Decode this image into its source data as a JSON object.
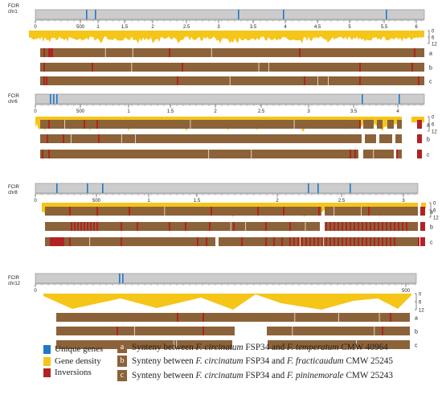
{
  "colors": {
    "unique_genes": "#1f78c8",
    "gene_density": "#f5c518",
    "inversions": "#b22222",
    "synteny": "#8c6239",
    "chromosome": "#cccccc"
  },
  "chromosomes": [
    {
      "label_line1": "FCIR",
      "label_line2": "chr1",
      "ticks": [
        "0",
        "500",
        "1",
        "1.5",
        "2",
        "2.5",
        "3",
        "3.5",
        "4",
        "4.5",
        "5",
        "5.5",
        "6"
      ],
      "axis_labels": [
        "0",
        "6",
        "12"
      ],
      "track_labels": [
        "a",
        "b",
        "c"
      ]
    },
    {
      "label_line1": "FCIR",
      "label_line2": "chr6",
      "ticks": [
        "0",
        "500",
        "1",
        "1.5",
        "2",
        "2.5",
        "3",
        "3.5",
        "4"
      ],
      "axis_labels": [
        "0",
        "6",
        "12"
      ],
      "track_labels": [
        "a",
        "b",
        "c"
      ]
    },
    {
      "label_line1": "FCIR",
      "label_line2": "chr8",
      "ticks": [
        "0",
        "500",
        "1",
        "1.5",
        "2",
        "2.5",
        "3"
      ],
      "axis_labels": [
        "0",
        "6",
        "12"
      ],
      "track_labels": [
        "a",
        "b",
        "c"
      ]
    },
    {
      "label_line1": "FCIR",
      "label_line2": "chr12",
      "ticks": [
        "0",
        "500"
      ],
      "axis_labels": [
        "0",
        "6",
        "12"
      ],
      "track_labels": [
        "a",
        "b",
        "c"
      ]
    }
  ],
  "legend": {
    "unique_genes": "Unique genes",
    "gene_density": "Gene density",
    "inversions": "Inversions",
    "synteny": [
      {
        "letter": "a",
        "pre": "Synteny between ",
        "g1": "F. circinatum",
        "mid": " FSP34 and ",
        "g2": "F. temperatum",
        "post": " CMW 40964"
      },
      {
        "letter": "b",
        "pre": "Synteny between ",
        "g1": "F. circinatum",
        "mid": " FSP34 and ",
        "g2": "F. fracticaudum",
        "post": " CMW 25245"
      },
      {
        "letter": "c",
        "pre": "Synteny between ",
        "g1": "F. circinatum",
        "mid": " FSP34 and ",
        "g2": "F. pininemorale",
        "post": " CMW 25243"
      }
    ]
  }
}
